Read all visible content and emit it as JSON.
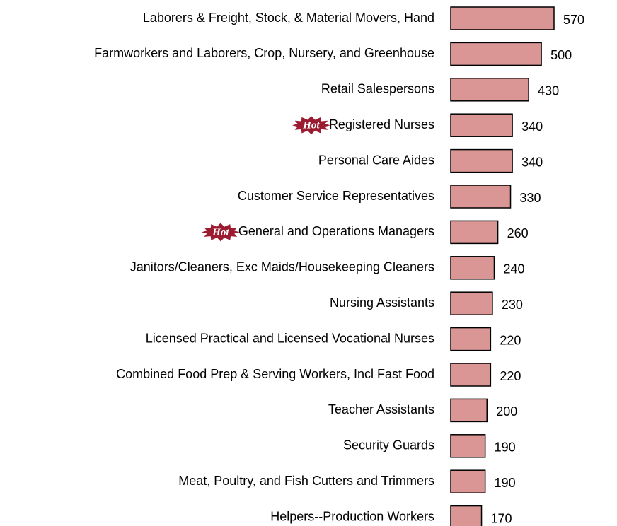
{
  "chart_data": {
    "type": "bar",
    "orientation": "horizontal",
    "categories": [
      "Laborers & Freight, Stock, & Material Movers, Hand",
      "Farmworkers and Laborers, Crop, Nursery, and Greenhouse",
      "Retail Salespersons",
      "Registered Nurses",
      "Personal Care Aides",
      "Customer Service Representatives",
      "General and Operations Managers",
      "Janitors/Cleaners, Exc Maids/Housekeeping Cleaners",
      "Nursing Assistants",
      "Licensed Practical and Licensed Vocational Nurses",
      "Combined Food Prep & Serving Workers, Incl Fast Food",
      "Teacher Assistants",
      "Security Guards",
      "Meat, Poultry, and Fish Cutters and Trimmers",
      "Helpers--Production Workers"
    ],
    "values": [
      570,
      500,
      430,
      340,
      340,
      330,
      260,
      240,
      230,
      220,
      220,
      200,
      190,
      190,
      170
    ],
    "color": "#d99694",
    "annotations": [
      {
        "label": "Hot",
        "category": "Registered Nurses"
      },
      {
        "label": "Hot",
        "category": "General and Operations Managers"
      }
    ]
  }
}
